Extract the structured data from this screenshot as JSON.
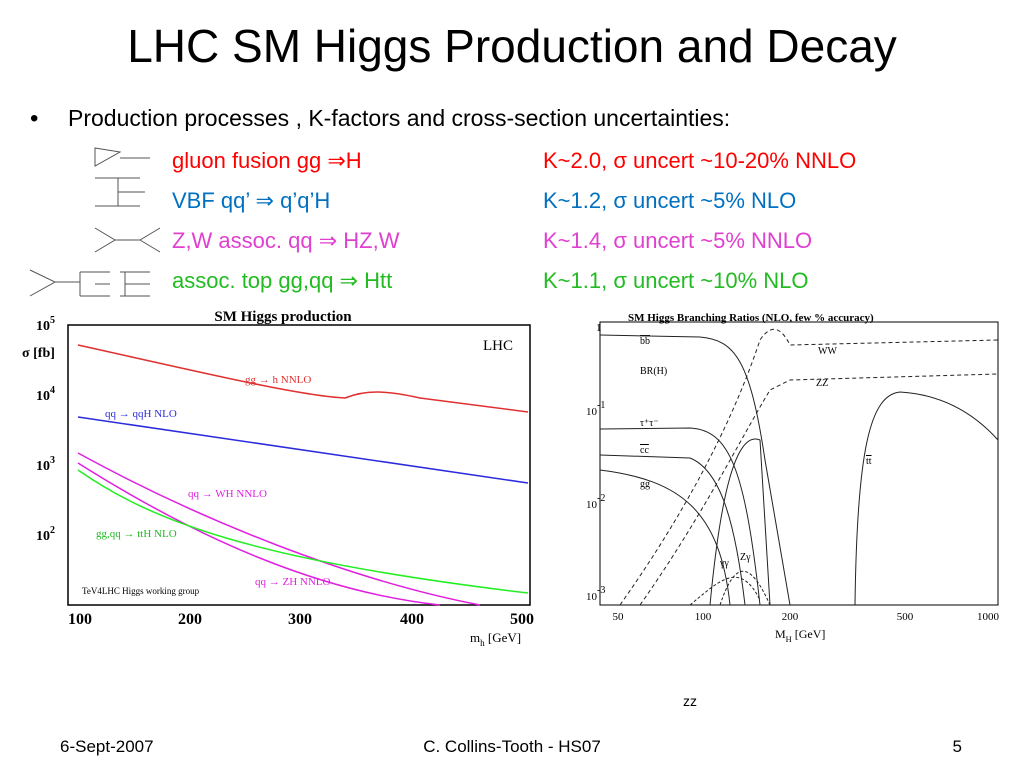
{
  "title": "LHC SM Higgs Production and Decay",
  "bullet": "Production processes , K-factors and cross-section uncertainties:",
  "processes": [
    {
      "name": "gluon fusion gg ⇒H",
      "detail": "K~2.0, σ uncert ~10-20% NNLO",
      "color": "#ff0000"
    },
    {
      "name": "VBF qq’ ⇒ q’q’H",
      "detail": "K~1.2, σ uncert ~5% NLO",
      "color": "#0070c0"
    },
    {
      "name": "Z,W assoc. qq ⇒ HZ,W",
      "detail": "K~1.4, σ uncert ~5% NNLO",
      "color": "#e040d0"
    },
    {
      "name": "assoc. top gg,qq ⇒ Htt",
      "detail": "K~1.1, σ uncert ~10% NLO",
      "color": "#22bb22"
    }
  ],
  "production_plot": {
    "title": "SM Higgs production",
    "y_label": "σ [fb]",
    "x_label": [
      "m",
      "h",
      " [GeV]"
    ],
    "y_ticks": [
      {
        "base": "10",
        "exp": "5"
      },
      {
        "base": "10",
        "exp": "4"
      },
      {
        "base": "10",
        "exp": "3"
      },
      {
        "base": "10",
        "exp": "2"
      }
    ],
    "x_ticks": [
      "100",
      "200",
      "300",
      "400",
      "500"
    ],
    "experiment": "LHC",
    "credit": "TeV4LHC Higgs working group",
    "curve_labels": [
      "gg → h   NNLO",
      "qq → qqH   NLO",
      "qq → WH   NNLO",
      "gg,qq → ttH   NLO",
      "qq → ZH   NNLO"
    ]
  },
  "branching_plot": {
    "title": "SM Higgs Branching Ratios (NLO, few % accuracy)",
    "x_label": [
      "M",
      "H",
      " [GeV]"
    ],
    "y_ticks": [
      {
        "base": "1",
        "exp": ""
      },
      {
        "base": "10",
        "exp": "-1"
      },
      {
        "base": "10",
        "exp": "-2"
      },
      {
        "base": "10",
        "exp": "-3"
      }
    ],
    "x_ticks": [
      "50",
      "100",
      "200",
      "500",
      "1000"
    ],
    "curve_labels": [
      "bb",
      "BR(H)",
      "τ⁺τ⁻",
      "cc",
      "gg",
      "γγ",
      "Zγ",
      "WW",
      "ZZ",
      "tt"
    ]
  },
  "note": "zz",
  "footer": {
    "date": "6-Sept-2007",
    "author": "C. Collins-Tooth  -  HS07",
    "page": "5"
  }
}
